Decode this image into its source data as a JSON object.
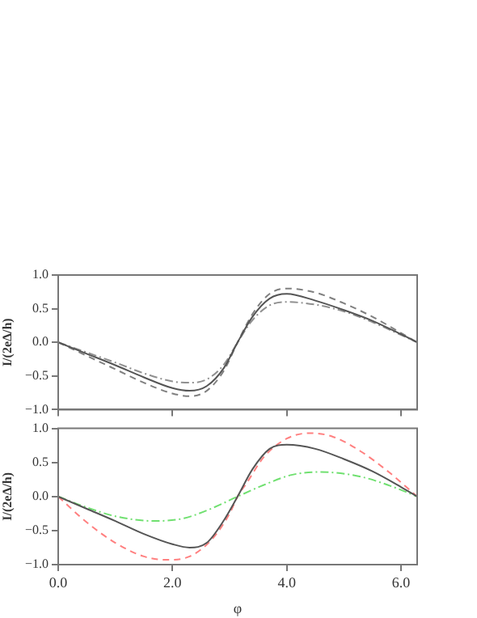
{
  "chart_data": [
    {
      "type": "line",
      "ylabel": "I/(2eΔ/h)",
      "xlim": [
        0,
        6.283
      ],
      "xticks": [
        0,
        2,
        4,
        6
      ],
      "ylim": [
        -1,
        1
      ],
      "yticks": [
        {
          "value": -1,
          "label": "−1.0"
        },
        {
          "value": -0.5,
          "label": "−0.5"
        },
        {
          "value": 0,
          "label": "0.0"
        },
        {
          "value": 0.5,
          "label": "0.5"
        },
        {
          "value": 1,
          "label": "1.0"
        }
      ],
      "tick_labels": "y",
      "grid": false,
      "marker": "none",
      "series": [
        {
          "color": "#555555",
          "line_style": "solid",
          "x": [
            0,
            0.5,
            1,
            1.5,
            2,
            2.3,
            2.6,
            2.9,
            3.14,
            3.4,
            3.7,
            4,
            4.5,
            5,
            5.5,
            6,
            6.283
          ],
          "values": [
            0,
            -0.17,
            -0.34,
            -0.52,
            -0.68,
            -0.72,
            -0.65,
            -0.38,
            0,
            0.38,
            0.65,
            0.72,
            0.62,
            0.48,
            0.32,
            0.12,
            0
          ]
        },
        {
          "color": "#808080",
          "line_style": "dashed",
          "x": [
            0,
            0.5,
            1,
            1.5,
            2,
            2.3,
            2.6,
            2.9,
            3.14,
            3.4,
            3.7,
            4,
            4.5,
            5,
            5.5,
            6,
            6.283
          ],
          "values": [
            0,
            -0.2,
            -0.4,
            -0.6,
            -0.76,
            -0.8,
            -0.72,
            -0.42,
            0,
            0.42,
            0.72,
            0.8,
            0.74,
            0.58,
            0.38,
            0.14,
            0
          ]
        },
        {
          "color": "#909090",
          "line_style": "dashdot",
          "x": [
            0,
            0.5,
            1,
            1.5,
            2,
            2.3,
            2.6,
            2.9,
            3.14,
            3.4,
            3.7,
            4,
            4.5,
            5,
            5.5,
            6,
            6.283
          ],
          "values": [
            0,
            -0.15,
            -0.3,
            -0.46,
            -0.58,
            -0.6,
            -0.55,
            -0.33,
            0,
            0.33,
            0.55,
            0.6,
            0.56,
            0.46,
            0.3,
            0.11,
            0
          ]
        }
      ]
    },
    {
      "type": "line",
      "xlabel": "φ",
      "ylabel": "I/(2eΔ/h)",
      "xlim": [
        0,
        6.283
      ],
      "xticks": [
        {
          "value": 0,
          "label": "0.0"
        },
        {
          "value": 2,
          "label": "2.0"
        },
        {
          "value": 4,
          "label": "4.0"
        },
        {
          "value": 6,
          "label": "6.0"
        }
      ],
      "ylim": [
        -1,
        1
      ],
      "yticks": [
        {
          "value": -1,
          "label": "−1.0"
        },
        {
          "value": -0.5,
          "label": "−0.5"
        },
        {
          "value": 0,
          "label": "0.0"
        },
        {
          "value": 0.5,
          "label": "0.5"
        },
        {
          "value": 1,
          "label": "1.0"
        }
      ],
      "grid": false,
      "marker": "none",
      "series": [
        {
          "color": "#555555",
          "line_style": "solid",
          "x": [
            0,
            0.5,
            1,
            1.5,
            2,
            2.3,
            2.6,
            2.9,
            3.14,
            3.4,
            3.7,
            4,
            4.5,
            5,
            5.5,
            6,
            6.283
          ],
          "values": [
            0,
            -0.18,
            -0.36,
            -0.55,
            -0.7,
            -0.75,
            -0.68,
            -0.35,
            0,
            0.4,
            0.7,
            0.76,
            0.7,
            0.55,
            0.37,
            0.14,
            0
          ]
        },
        {
          "color": "#ff8080",
          "line_style": "dashed",
          "x": [
            0,
            0.5,
            1,
            1.5,
            1.9,
            2.3,
            2.7,
            3,
            3.14,
            3.3,
            3.6,
            4,
            4.4,
            4.8,
            5.3,
            5.8,
            6.283
          ],
          "values": [
            0,
            -0.38,
            -0.68,
            -0.88,
            -0.93,
            -0.88,
            -0.62,
            -0.25,
            0,
            0.2,
            0.58,
            0.85,
            0.93,
            0.88,
            0.66,
            0.35,
            0
          ]
        },
        {
          "color": "#70e070",
          "line_style": "dashdot",
          "x": [
            0,
            0.5,
            1,
            1.7,
            2.2,
            2.7,
            3.14,
            3.6,
            4.1,
            4.6,
            5.3,
            5.8,
            6.283
          ],
          "values": [
            0,
            -0.16,
            -0.29,
            -0.36,
            -0.32,
            -0.17,
            0,
            0.17,
            0.32,
            0.36,
            0.29,
            0.16,
            0
          ]
        }
      ]
    }
  ]
}
